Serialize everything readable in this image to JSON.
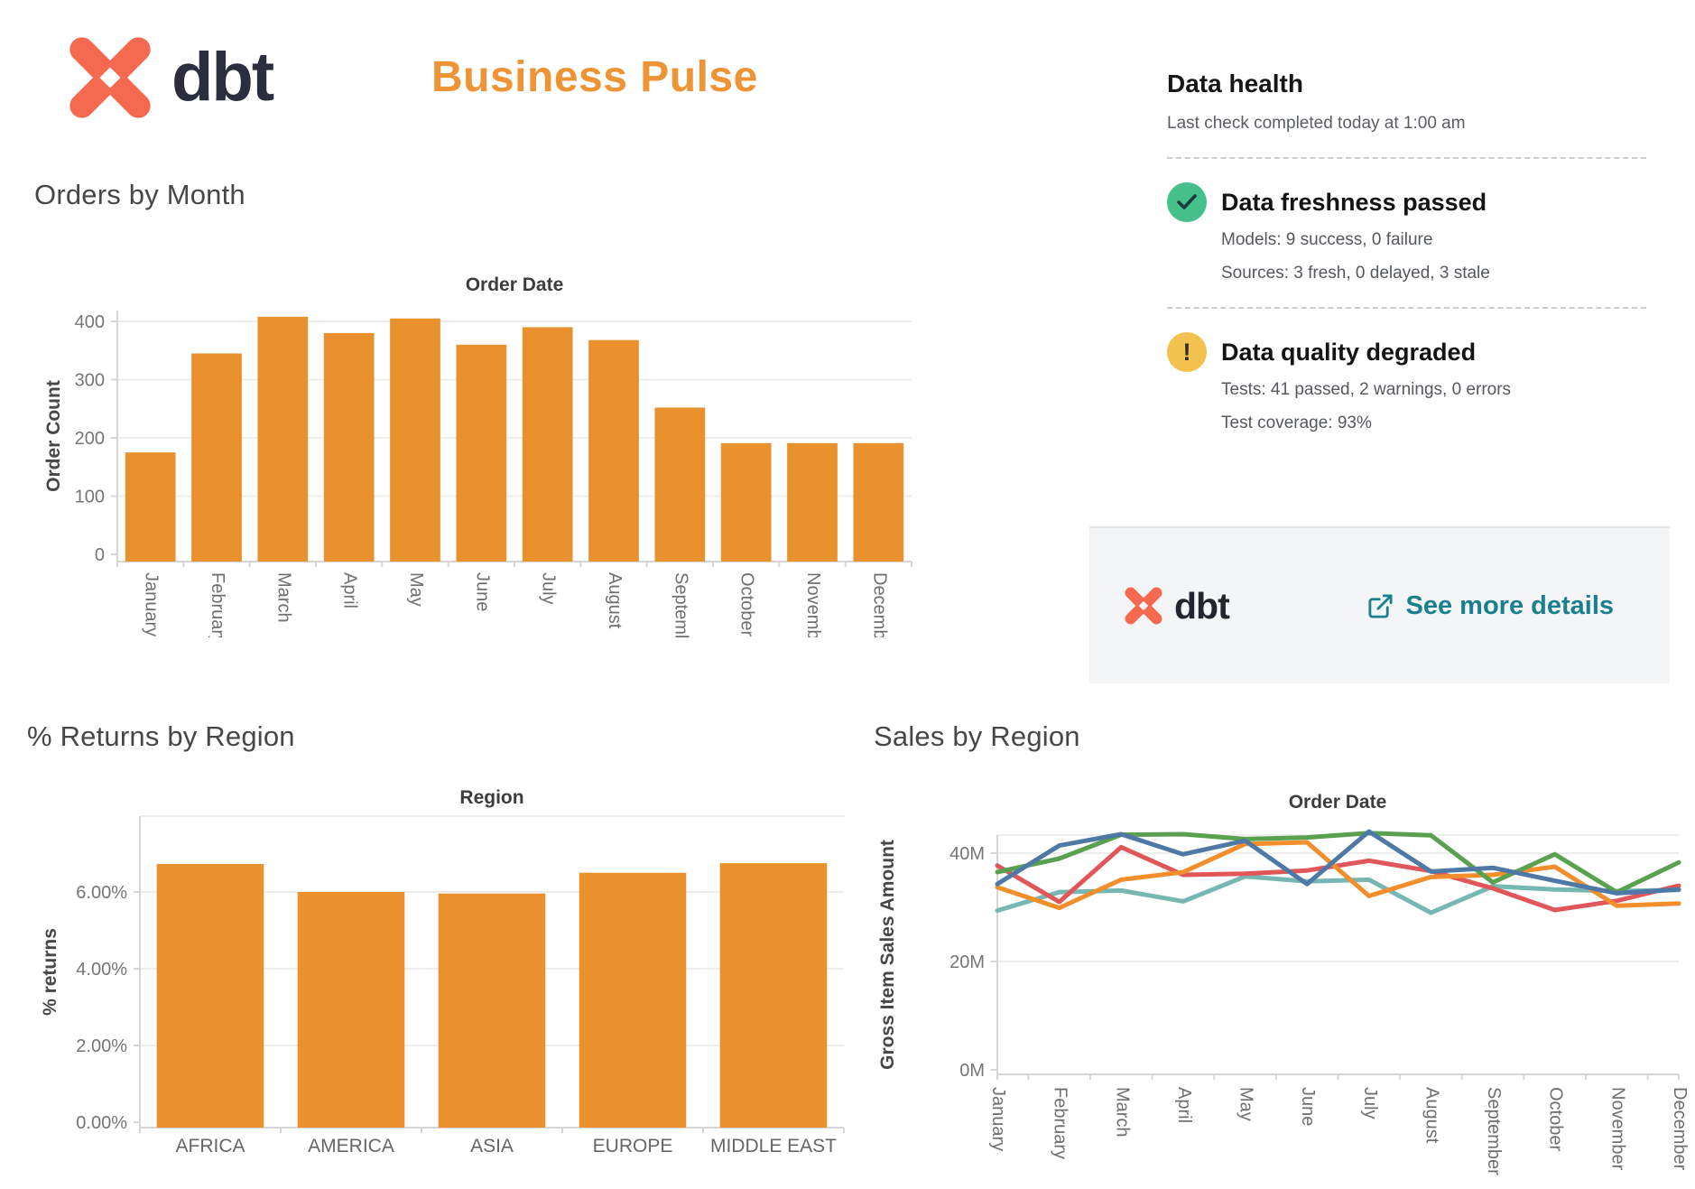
{
  "header": {
    "logo_text": "dbt",
    "title": "Business Pulse"
  },
  "health": {
    "title": "Data health",
    "last_check": "Last check completed today at 1:00 am",
    "statuses": [
      {
        "icon": "check",
        "heading": "Data freshness passed",
        "lines": [
          "Models: 9 success, 0 failure",
          "Sources: 3 fresh, 0 delayed, 3 stale"
        ]
      },
      {
        "icon": "exclamation",
        "heading": "Data quality degraded",
        "lines": [
          "Tests: 41 passed, 2 warnings, 0 errors",
          "Test coverage: 93%"
        ]
      }
    ],
    "footer": {
      "logo_text": "dbt",
      "link_label": "See more details"
    }
  },
  "charts": {
    "orders": {
      "heading": "Orders by Month"
    },
    "returns": {
      "heading": "% Returns by Region"
    },
    "sales": {
      "heading": "Sales by Region"
    }
  },
  "colors": {
    "bar_orange": "#e8912d",
    "title_orange": "#ee9435",
    "logo_coral": "#f4694f",
    "link_teal": "#1a7f8e",
    "success_green": "#45c08a",
    "warning_yellow": "#f2c14e"
  },
  "chart_data": [
    {
      "id": "orders",
      "type": "bar",
      "axis_title": "Order Date",
      "ylabel": "Order Count",
      "categories": [
        "January",
        "February",
        "March",
        "April",
        "May",
        "June",
        "July",
        "August",
        "September",
        "October",
        "November",
        "December"
      ],
      "values": [
        175,
        345,
        408,
        380,
        405,
        360,
        390,
        368,
        252,
        191,
        191,
        191
      ],
      "ylim": [
        0,
        430
      ],
      "yticks": [
        {
          "v": 0,
          "label": "0"
        },
        {
          "v": 100,
          "label": "100"
        },
        {
          "v": 200,
          "label": "200"
        },
        {
          "v": 300,
          "label": "300"
        },
        {
          "v": 400,
          "label": "400"
        }
      ],
      "bar_color": "#e8912d",
      "grid": true,
      "legend": "none"
    },
    {
      "id": "returns",
      "type": "bar",
      "axis_title": "Region",
      "ylabel": "% returns",
      "categories": [
        "AFRICA",
        "AMERICA",
        "ASIA",
        "EUROPE",
        "MIDDLE EAST"
      ],
      "values": [
        6.73,
        6.0,
        5.96,
        6.5,
        6.75
      ],
      "ylim": [
        0,
        7.6
      ],
      "yticks": [
        {
          "v": 0,
          "label": "0.00%"
        },
        {
          "v": 2,
          "label": "2.00%"
        },
        {
          "v": 4,
          "label": "4.00%"
        },
        {
          "v": 6,
          "label": "6.00%"
        }
      ],
      "bar_color": "#e8912d",
      "grid": true,
      "legend": "none"
    },
    {
      "id": "sales",
      "type": "line",
      "axis_title": "Order Date",
      "ylabel": "Gross Item Sales Amount",
      "categories": [
        "January",
        "February",
        "March",
        "April",
        "May",
        "June",
        "July",
        "August",
        "September",
        "October",
        "November",
        "December"
      ],
      "series": [
        {
          "name": "teal",
          "color": "#76b7b2",
          "values": [
            29.4,
            32.8,
            33.1,
            31.1,
            35.7,
            34.8,
            35.1,
            29.0,
            33.9,
            33.3,
            33.0,
            33.2
          ]
        },
        {
          "name": "red",
          "color": "#e15759",
          "values": [
            37.7,
            31.0,
            41.1,
            36.0,
            36.2,
            36.8,
            38.6,
            36.7,
            33.5,
            29.5,
            31.2,
            34.0
          ]
        },
        {
          "name": "orange",
          "color": "#f28e2b",
          "values": [
            33.7,
            29.9,
            35.1,
            36.5,
            41.7,
            42.0,
            32.1,
            35.6,
            36.0,
            37.5,
            30.3,
            30.7
          ]
        },
        {
          "name": "green",
          "color": "#59a14f",
          "values": [
            36.5,
            39.0,
            43.4,
            43.5,
            42.6,
            42.9,
            43.7,
            43.3,
            34.6,
            39.8,
            32.8,
            38.3
          ]
        },
        {
          "name": "blue",
          "color": "#4e79a7",
          "values": [
            34.3,
            41.4,
            43.5,
            39.8,
            42.3,
            34.3,
            44.0,
            36.6,
            37.3,
            34.9,
            32.6,
            33.3
          ]
        }
      ],
      "ylim": [
        0,
        46
      ],
      "yticks": [
        {
          "v": 0,
          "label": "0M"
        },
        {
          "v": 20,
          "label": "20M"
        },
        {
          "v": 40,
          "label": "40M"
        }
      ],
      "grid": true,
      "legend": "none"
    }
  ]
}
